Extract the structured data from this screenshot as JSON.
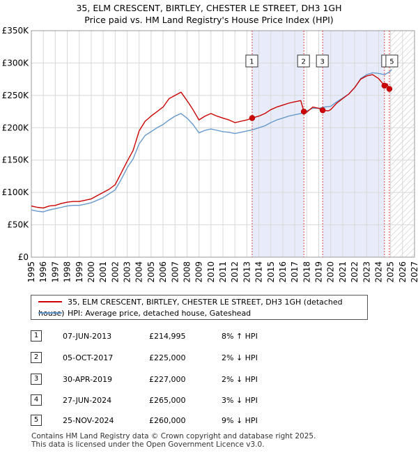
{
  "title": {
    "line1": "35, ELM CRESCENT, BIRTLEY, CHESTER LE STREET, DH3 1GH",
    "line2": "Price paid vs. HM Land Registry's House Price Index (HPI)"
  },
  "chart_data": {
    "type": "line",
    "xlim": [
      1995,
      2027
    ],
    "ylim": [
      0,
      350000
    ],
    "y_ticks": [
      {
        "value": 0,
        "label": "£0"
      },
      {
        "value": 50000,
        "label": "£50K"
      },
      {
        "value": 100000,
        "label": "£100K"
      },
      {
        "value": 150000,
        "label": "£150K"
      },
      {
        "value": 200000,
        "label": "£200K"
      },
      {
        "value": 250000,
        "label": "£250K"
      },
      {
        "value": 300000,
        "label": "£300K"
      },
      {
        "value": 350000,
        "label": "£350K"
      }
    ],
    "x_ticks": [
      "1995",
      "1996",
      "1997",
      "1998",
      "1999",
      "2000",
      "2001",
      "2002",
      "2003",
      "2004",
      "2005",
      "2006",
      "2007",
      "2008",
      "2009",
      "2010",
      "2011",
      "2012",
      "2013",
      "2014",
      "2015",
      "2016",
      "2017",
      "2018",
      "2019",
      "2020",
      "2021",
      "2022",
      "2023",
      "2024",
      "2025",
      "2026",
      "2027"
    ],
    "grid": true,
    "future_hatched_from": 2025.0,
    "series": [
      {
        "name": "35, ELM CRESCENT, BIRTLEY, CHESTER LE STREET, DH3 1GH (detached house)",
        "color": "#cc0000",
        "points": [
          [
            1995.0,
            79000
          ],
          [
            1995.5,
            77000
          ],
          [
            1996.0,
            76000
          ],
          [
            1996.5,
            79000
          ],
          [
            1997.0,
            80000
          ],
          [
            1997.5,
            83000
          ],
          [
            1998.0,
            85000
          ],
          [
            1998.5,
            86000
          ],
          [
            1999.0,
            86000
          ],
          [
            1999.5,
            88000
          ],
          [
            2000.0,
            90000
          ],
          [
            2000.5,
            95000
          ],
          [
            2001.0,
            100000
          ],
          [
            2001.5,
            105000
          ],
          [
            2002.0,
            112000
          ],
          [
            2002.5,
            130000
          ],
          [
            2003.0,
            148000
          ],
          [
            2003.5,
            165000
          ],
          [
            2004.0,
            195000
          ],
          [
            2004.5,
            210000
          ],
          [
            2005.0,
            218000
          ],
          [
            2005.5,
            225000
          ],
          [
            2006.0,
            232000
          ],
          [
            2006.5,
            245000
          ],
          [
            2007.0,
            250000
          ],
          [
            2007.5,
            255000
          ],
          [
            2008.0,
            242000
          ],
          [
            2008.5,
            228000
          ],
          [
            2009.0,
            212000
          ],
          [
            2009.5,
            218000
          ],
          [
            2010.0,
            222000
          ],
          [
            2010.5,
            218000
          ],
          [
            2011.0,
            215000
          ],
          [
            2011.5,
            212000
          ],
          [
            2012.0,
            208000
          ],
          [
            2012.5,
            210000
          ],
          [
            2013.0,
            212000
          ],
          [
            2013.44,
            214995
          ],
          [
            2014.0,
            218000
          ],
          [
            2014.5,
            222000
          ],
          [
            2015.0,
            228000
          ],
          [
            2015.5,
            232000
          ],
          [
            2016.0,
            235000
          ],
          [
            2016.5,
            238000
          ],
          [
            2017.0,
            240000
          ],
          [
            2017.5,
            242000
          ],
          [
            2017.76,
            225000
          ],
          [
            2018.0,
            224000
          ],
          [
            2018.5,
            232000
          ],
          [
            2019.0,
            230000
          ],
          [
            2019.33,
            227000
          ],
          [
            2019.8,
            226000
          ],
          [
            2020.0,
            228000
          ],
          [
            2020.5,
            238000
          ],
          [
            2021.0,
            245000
          ],
          [
            2021.5,
            252000
          ],
          [
            2022.0,
            262000
          ],
          [
            2022.5,
            275000
          ],
          [
            2023.0,
            280000
          ],
          [
            2023.5,
            282000
          ],
          [
            2024.0,
            276000
          ],
          [
            2024.49,
            265000
          ],
          [
            2024.7,
            268000
          ],
          [
            2024.9,
            260000
          ],
          [
            2025.1,
            259000
          ]
        ]
      },
      {
        "name": "HPI: Average price, detached house, Gateshead",
        "color": "#6699cc",
        "points": [
          [
            1995.0,
            73000
          ],
          [
            1995.5,
            71000
          ],
          [
            1996.0,
            70000
          ],
          [
            1996.5,
            73000
          ],
          [
            1997.0,
            75000
          ],
          [
            1997.5,
            77000
          ],
          [
            1998.0,
            79000
          ],
          [
            1998.5,
            80000
          ],
          [
            1999.0,
            80000
          ],
          [
            1999.5,
            82000
          ],
          [
            2000.0,
            84000
          ],
          [
            2000.5,
            88000
          ],
          [
            2001.0,
            92000
          ],
          [
            2001.5,
            98000
          ],
          [
            2002.0,
            104000
          ],
          [
            2002.5,
            120000
          ],
          [
            2003.0,
            138000
          ],
          [
            2003.5,
            152000
          ],
          [
            2004.0,
            175000
          ],
          [
            2004.5,
            188000
          ],
          [
            2005.0,
            194000
          ],
          [
            2005.5,
            200000
          ],
          [
            2006.0,
            205000
          ],
          [
            2006.5,
            212000
          ],
          [
            2007.0,
            218000
          ],
          [
            2007.5,
            222000
          ],
          [
            2008.0,
            215000
          ],
          [
            2008.5,
            205000
          ],
          [
            2009.0,
            192000
          ],
          [
            2009.5,
            196000
          ],
          [
            2010.0,
            198000
          ],
          [
            2010.5,
            196000
          ],
          [
            2011.0,
            194000
          ],
          [
            2011.5,
            193000
          ],
          [
            2012.0,
            191000
          ],
          [
            2012.5,
            193000
          ],
          [
            2013.0,
            195000
          ],
          [
            2013.5,
            197000
          ],
          [
            2014.0,
            200000
          ],
          [
            2014.5,
            203000
          ],
          [
            2015.0,
            208000
          ],
          [
            2015.5,
            212000
          ],
          [
            2016.0,
            215000
          ],
          [
            2016.5,
            218000
          ],
          [
            2017.0,
            220000
          ],
          [
            2017.5,
            222000
          ],
          [
            2018.0,
            226000
          ],
          [
            2018.5,
            230000
          ],
          [
            2019.0,
            230000
          ],
          [
            2019.5,
            232000
          ],
          [
            2020.0,
            233000
          ],
          [
            2020.5,
            240000
          ],
          [
            2021.0,
            246000
          ],
          [
            2021.5,
            252000
          ],
          [
            2022.0,
            262000
          ],
          [
            2022.5,
            276000
          ],
          [
            2023.0,
            282000
          ],
          [
            2023.5,
            285000
          ],
          [
            2024.0,
            284000
          ],
          [
            2024.5,
            282000
          ],
          [
            2024.9,
            286000
          ],
          [
            2025.1,
            290000
          ]
        ]
      }
    ],
    "sales": [
      {
        "id": "1",
        "x": 2013.44,
        "value": 214995
      },
      {
        "id": "2",
        "x": 2017.76,
        "value": 225000
      },
      {
        "id": "3",
        "x": 2019.33,
        "value": 227000
      },
      {
        "id": "4",
        "x": 2024.49,
        "value": 265000
      },
      {
        "id": "5",
        "x": 2024.9,
        "value": 260000
      }
    ],
    "shaded_ranges": [
      [
        2013.44,
        2017.76
      ],
      [
        2019.33,
        2024.49
      ]
    ]
  },
  "legend": {
    "property_label": "35, ELM CRESCENT, BIRTLEY, CHESTER LE STREET, DH3 1GH (detached house)",
    "hpi_label": "HPI: Average price, detached house, Gateshead",
    "property_color": "#cc0000",
    "hpi_color": "#6699cc"
  },
  "sales_table": [
    {
      "num": "1",
      "date": "07-JUN-2013",
      "price": "£214,995",
      "hpi": "8% ↑ HPI"
    },
    {
      "num": "2",
      "date": "05-OCT-2017",
      "price": "£225,000",
      "hpi": "2% ↓ HPI"
    },
    {
      "num": "3",
      "date": "30-APR-2019",
      "price": "£227,000",
      "hpi": "2% ↓ HPI"
    },
    {
      "num": "4",
      "date": "27-JUN-2024",
      "price": "£265,000",
      "hpi": "3% ↓ HPI"
    },
    {
      "num": "5",
      "date": "25-NOV-2024",
      "price": "£260,000",
      "hpi": "9% ↓ HPI"
    }
  ],
  "footer": {
    "line1": "Contains HM Land Registry data © Crown copyright and database right 2025.",
    "line2": "This data is licensed under the Open Government Licence v3.0."
  }
}
